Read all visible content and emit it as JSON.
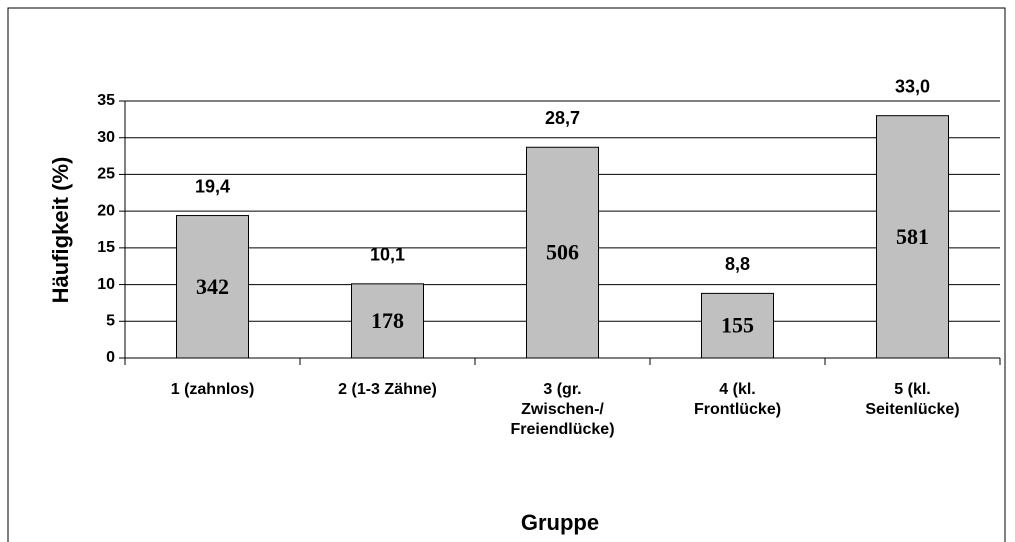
{
  "chart_data": {
    "type": "bar",
    "x_label": "Gruppe",
    "y_label": "Häufigkeit (%)",
    "categories": [
      [
        "1 (zahnlos)"
      ],
      [
        "2 (1-3 Zähne)"
      ],
      [
        "3 (gr.",
        "Zwischen-/",
        "Freiendlücke)"
      ],
      [
        "4 (kl.",
        "Frontlücke)"
      ],
      [
        "5 (kl.",
        "Seitenlücke)"
      ]
    ],
    "values": [
      19.4,
      10.1,
      28.7,
      8.8,
      33.0
    ],
    "value_labels": [
      "19,4",
      "10,1",
      "28,7",
      "8,8",
      "33,0"
    ],
    "counts": [
      342,
      178,
      506,
      155,
      581
    ],
    "color": "#c0c0c0",
    "ylim": [
      0,
      35
    ],
    "yticks": [
      0,
      5,
      10,
      15,
      20,
      25,
      30,
      35
    ],
    "grid": true
  }
}
